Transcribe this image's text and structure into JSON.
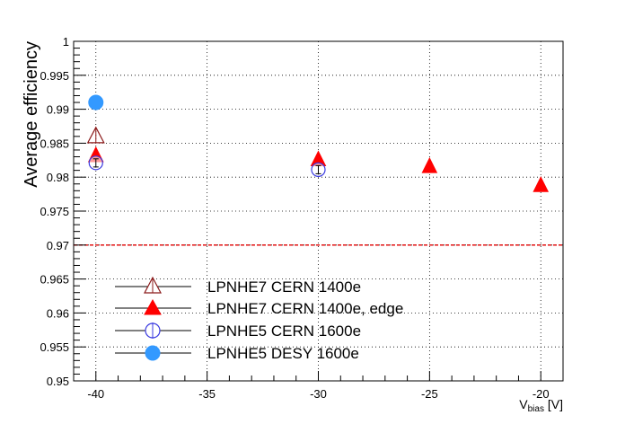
{
  "chart_data": {
    "type": "scatter",
    "title": "",
    "xlabel": "V",
    "xlabel_sub": "bias",
    "xlabel_unit": " [V]",
    "ylabel": "Average efficiency",
    "xlim": [
      -41,
      -19
    ],
    "ylim": [
      0.95,
      1.0
    ],
    "grid": true,
    "legend_position": "bottom-left",
    "x_ticks": [
      -40,
      -35,
      -30,
      -25,
      -20
    ],
    "x_tick_labels": [
      "-40",
      "-35",
      "-30",
      "-25",
      "-20"
    ],
    "y_ticks": [
      0.95,
      0.955,
      0.96,
      0.965,
      0.97,
      0.975,
      0.98,
      0.985,
      0.99,
      0.995,
      1.0
    ],
    "y_tick_labels": [
      "0.95",
      "0.955",
      "0.96",
      "0.965",
      "0.97",
      "0.975",
      "0.98",
      "0.985",
      "0.99",
      "0.995",
      "1"
    ],
    "reference_line": {
      "y": 0.97,
      "color": "#e00000"
    },
    "series": [
      {
        "name": "LPNHE7 CERN 1400e",
        "marker": "open-triangle",
        "color": "#8b1a1a",
        "x": [
          -40
        ],
        "y": [
          0.986
        ]
      },
      {
        "name": "LPNHE7 CERN 1400e, edge",
        "marker": "filled-triangle",
        "color": "#ff0000",
        "x": [
          -40,
          -30,
          -25,
          -20
        ],
        "y": [
          0.9832,
          0.9826,
          0.9816,
          0.9788
        ]
      },
      {
        "name": "LPNHE5 CERN 1600e",
        "marker": "open-circle",
        "color": "#3a3ae0",
        "x": [
          -40,
          -30
        ],
        "y": [
          0.9821,
          0.9811
        ],
        "yerr": [
          0.0006,
          0.0006
        ]
      },
      {
        "name": "LPNHE5 DESY 1600e",
        "marker": "filled-circle",
        "color": "#3399ff",
        "x": [
          -40
        ],
        "y": [
          0.991
        ]
      }
    ]
  }
}
